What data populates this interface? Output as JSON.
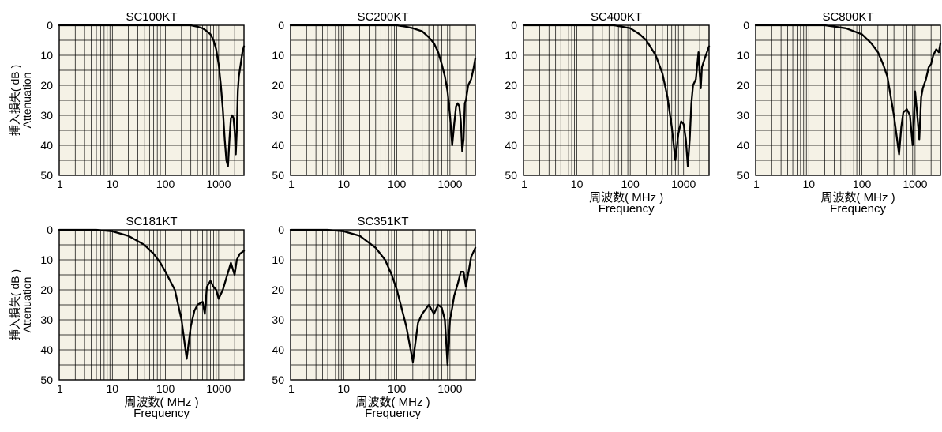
{
  "chart_data": [
    {
      "type": "line",
      "title": "SC100KT",
      "x_scale": "log",
      "xlim": [
        1,
        3000
      ],
      "ylim": [
        0,
        50
      ],
      "y_inverted": true,
      "x_ticks": [
        "1",
        "10",
        "100",
        "1000"
      ],
      "y_ticks": [
        "0",
        "10",
        "20",
        "30",
        "40",
        "50"
      ],
      "ylabel": [
        "挿入損失( dB )",
        "Attenuation"
      ],
      "xlabel": [],
      "x": [
        1,
        100,
        300,
        400,
        500,
        600,
        700,
        800,
        900,
        1000,
        1100,
        1200,
        1300,
        1400,
        1500,
        1600,
        1700,
        1800,
        1900,
        2000,
        2100,
        2200,
        2300,
        2400,
        2600,
        2800,
        3000
      ],
      "y": [
        0,
        0,
        0,
        0.5,
        1,
        2,
        3,
        5,
        8,
        13,
        20,
        28,
        38,
        45,
        47,
        38,
        31,
        30,
        31,
        35,
        43,
        35,
        22,
        17,
        13,
        9,
        7
      ]
    },
    {
      "type": "line",
      "title": "SC200KT",
      "x_scale": "log",
      "xlim": [
        1,
        3000
      ],
      "ylim": [
        0,
        50
      ],
      "y_inverted": true,
      "x_ticks": [
        "1",
        "10",
        "100",
        "1000"
      ],
      "y_ticks": [
        "0",
        "10",
        "20",
        "30",
        "40",
        "50"
      ],
      "ylabel": [],
      "xlabel": [],
      "x": [
        1,
        100,
        150,
        200,
        300,
        400,
        500,
        600,
        700,
        800,
        900,
        1000,
        1100,
        1200,
        1300,
        1400,
        1500,
        1600,
        1700,
        1800,
        1900,
        2000,
        2200,
        2500,
        2800,
        3000
      ],
      "y": [
        0,
        0,
        0.5,
        1,
        2,
        4,
        6,
        9,
        13,
        17,
        22,
        30,
        40,
        33,
        27,
        26,
        27,
        32,
        42,
        38,
        26,
        25,
        20,
        18,
        14,
        11
      ]
    },
    {
      "type": "line",
      "title": "SC400KT",
      "x_scale": "log",
      "xlim": [
        1,
        3000
      ],
      "ylim": [
        0,
        50
      ],
      "y_inverted": true,
      "x_ticks": [
        "1",
        "10",
        "100",
        "1000"
      ],
      "y_ticks": [
        "0",
        "10",
        "20",
        "30",
        "40",
        "50"
      ],
      "ylabel": [],
      "xlabel": [
        "周波数( MHz )",
        "Frequency"
      ],
      "x": [
        1,
        50,
        100,
        150,
        200,
        300,
        400,
        500,
        600,
        700,
        800,
        900,
        1000,
        1100,
        1200,
        1300,
        1400,
        1500,
        1700,
        1900,
        2000,
        2100,
        2200,
        2500,
        3000
      ],
      "y": [
        0,
        0,
        1,
        3,
        5,
        10,
        16,
        24,
        34,
        45,
        36,
        32,
        33,
        38,
        47,
        38,
        26,
        20,
        18,
        9,
        16,
        21,
        14,
        11,
        7
      ]
    },
    {
      "type": "line",
      "title": "SC800KT",
      "x_scale": "log",
      "xlim": [
        1,
        3000
      ],
      "ylim": [
        0,
        50
      ],
      "y_inverted": true,
      "x_ticks": [
        "1",
        "10",
        "100",
        "1000"
      ],
      "y_ticks": [
        "0",
        "10",
        "20",
        "30",
        "40",
        "50"
      ],
      "ylabel": [],
      "xlabel": [
        "周波数( MHz )",
        "Frequency"
      ],
      "x": [
        1,
        20,
        50,
        100,
        150,
        200,
        250,
        300,
        350,
        400,
        450,
        500,
        550,
        600,
        700,
        800,
        900,
        1000,
        1100,
        1200,
        1300,
        1400,
        1600,
        1800,
        2000,
        2200,
        2500,
        2800,
        3000
      ],
      "y": [
        0,
        0,
        1,
        3,
        6,
        9,
        13,
        17,
        24,
        30,
        37,
        43,
        34,
        29,
        28,
        30,
        40,
        22,
        30,
        38,
        24,
        21,
        18,
        14,
        13,
        10,
        8,
        9,
        6
      ]
    },
    {
      "type": "line",
      "title": "SC181KT",
      "x_scale": "log",
      "xlim": [
        1,
        3000
      ],
      "ylim": [
        0,
        50
      ],
      "y_inverted": true,
      "x_ticks": [
        "1",
        "10",
        "100",
        "1000"
      ],
      "y_ticks": [
        "0",
        "10",
        "20",
        "30",
        "40",
        "50"
      ],
      "ylabel": [
        "挿入損失( dB )",
        "Attenuation"
      ],
      "xlabel": [
        "周波数( MHz )",
        "Frequency"
      ],
      "x": [
        1,
        5,
        10,
        20,
        40,
        60,
        80,
        100,
        150,
        200,
        250,
        300,
        350,
        400,
        500,
        550,
        600,
        700,
        800,
        900,
        1000,
        1200,
        1400,
        1700,
        2000,
        2200,
        2500,
        3000
      ],
      "y": [
        0,
        0,
        0.5,
        2,
        5,
        8,
        11,
        14,
        20,
        30,
        43,
        32,
        27,
        25,
        24,
        28,
        19,
        17,
        19,
        20,
        23,
        20,
        16,
        11,
        15,
        10,
        8,
        7
      ]
    },
    {
      "type": "line",
      "title": "SC351KT",
      "x_scale": "log",
      "xlim": [
        1,
        3000
      ],
      "ylim": [
        0,
        50
      ],
      "y_inverted": true,
      "x_ticks": [
        "1",
        "10",
        "100",
        "1000"
      ],
      "y_ticks": [
        "0",
        "10",
        "20",
        "30",
        "40",
        "50"
      ],
      "ylabel": [],
      "xlabel": [
        "周波数( MHz )",
        "Frequency"
      ],
      "x": [
        1,
        5,
        10,
        20,
        40,
        60,
        80,
        100,
        150,
        200,
        250,
        300,
        400,
        500,
        600,
        700,
        800,
        900,
        1000,
        1100,
        1200,
        1400,
        1600,
        1800,
        2000,
        2500,
        3000
      ],
      "y": [
        0,
        0,
        0.5,
        2,
        6,
        10,
        15,
        20,
        32,
        44,
        31,
        28,
        25,
        28,
        25,
        26,
        30,
        45,
        30,
        26,
        22,
        18,
        14,
        14,
        19,
        9,
        6
      ]
    }
  ]
}
